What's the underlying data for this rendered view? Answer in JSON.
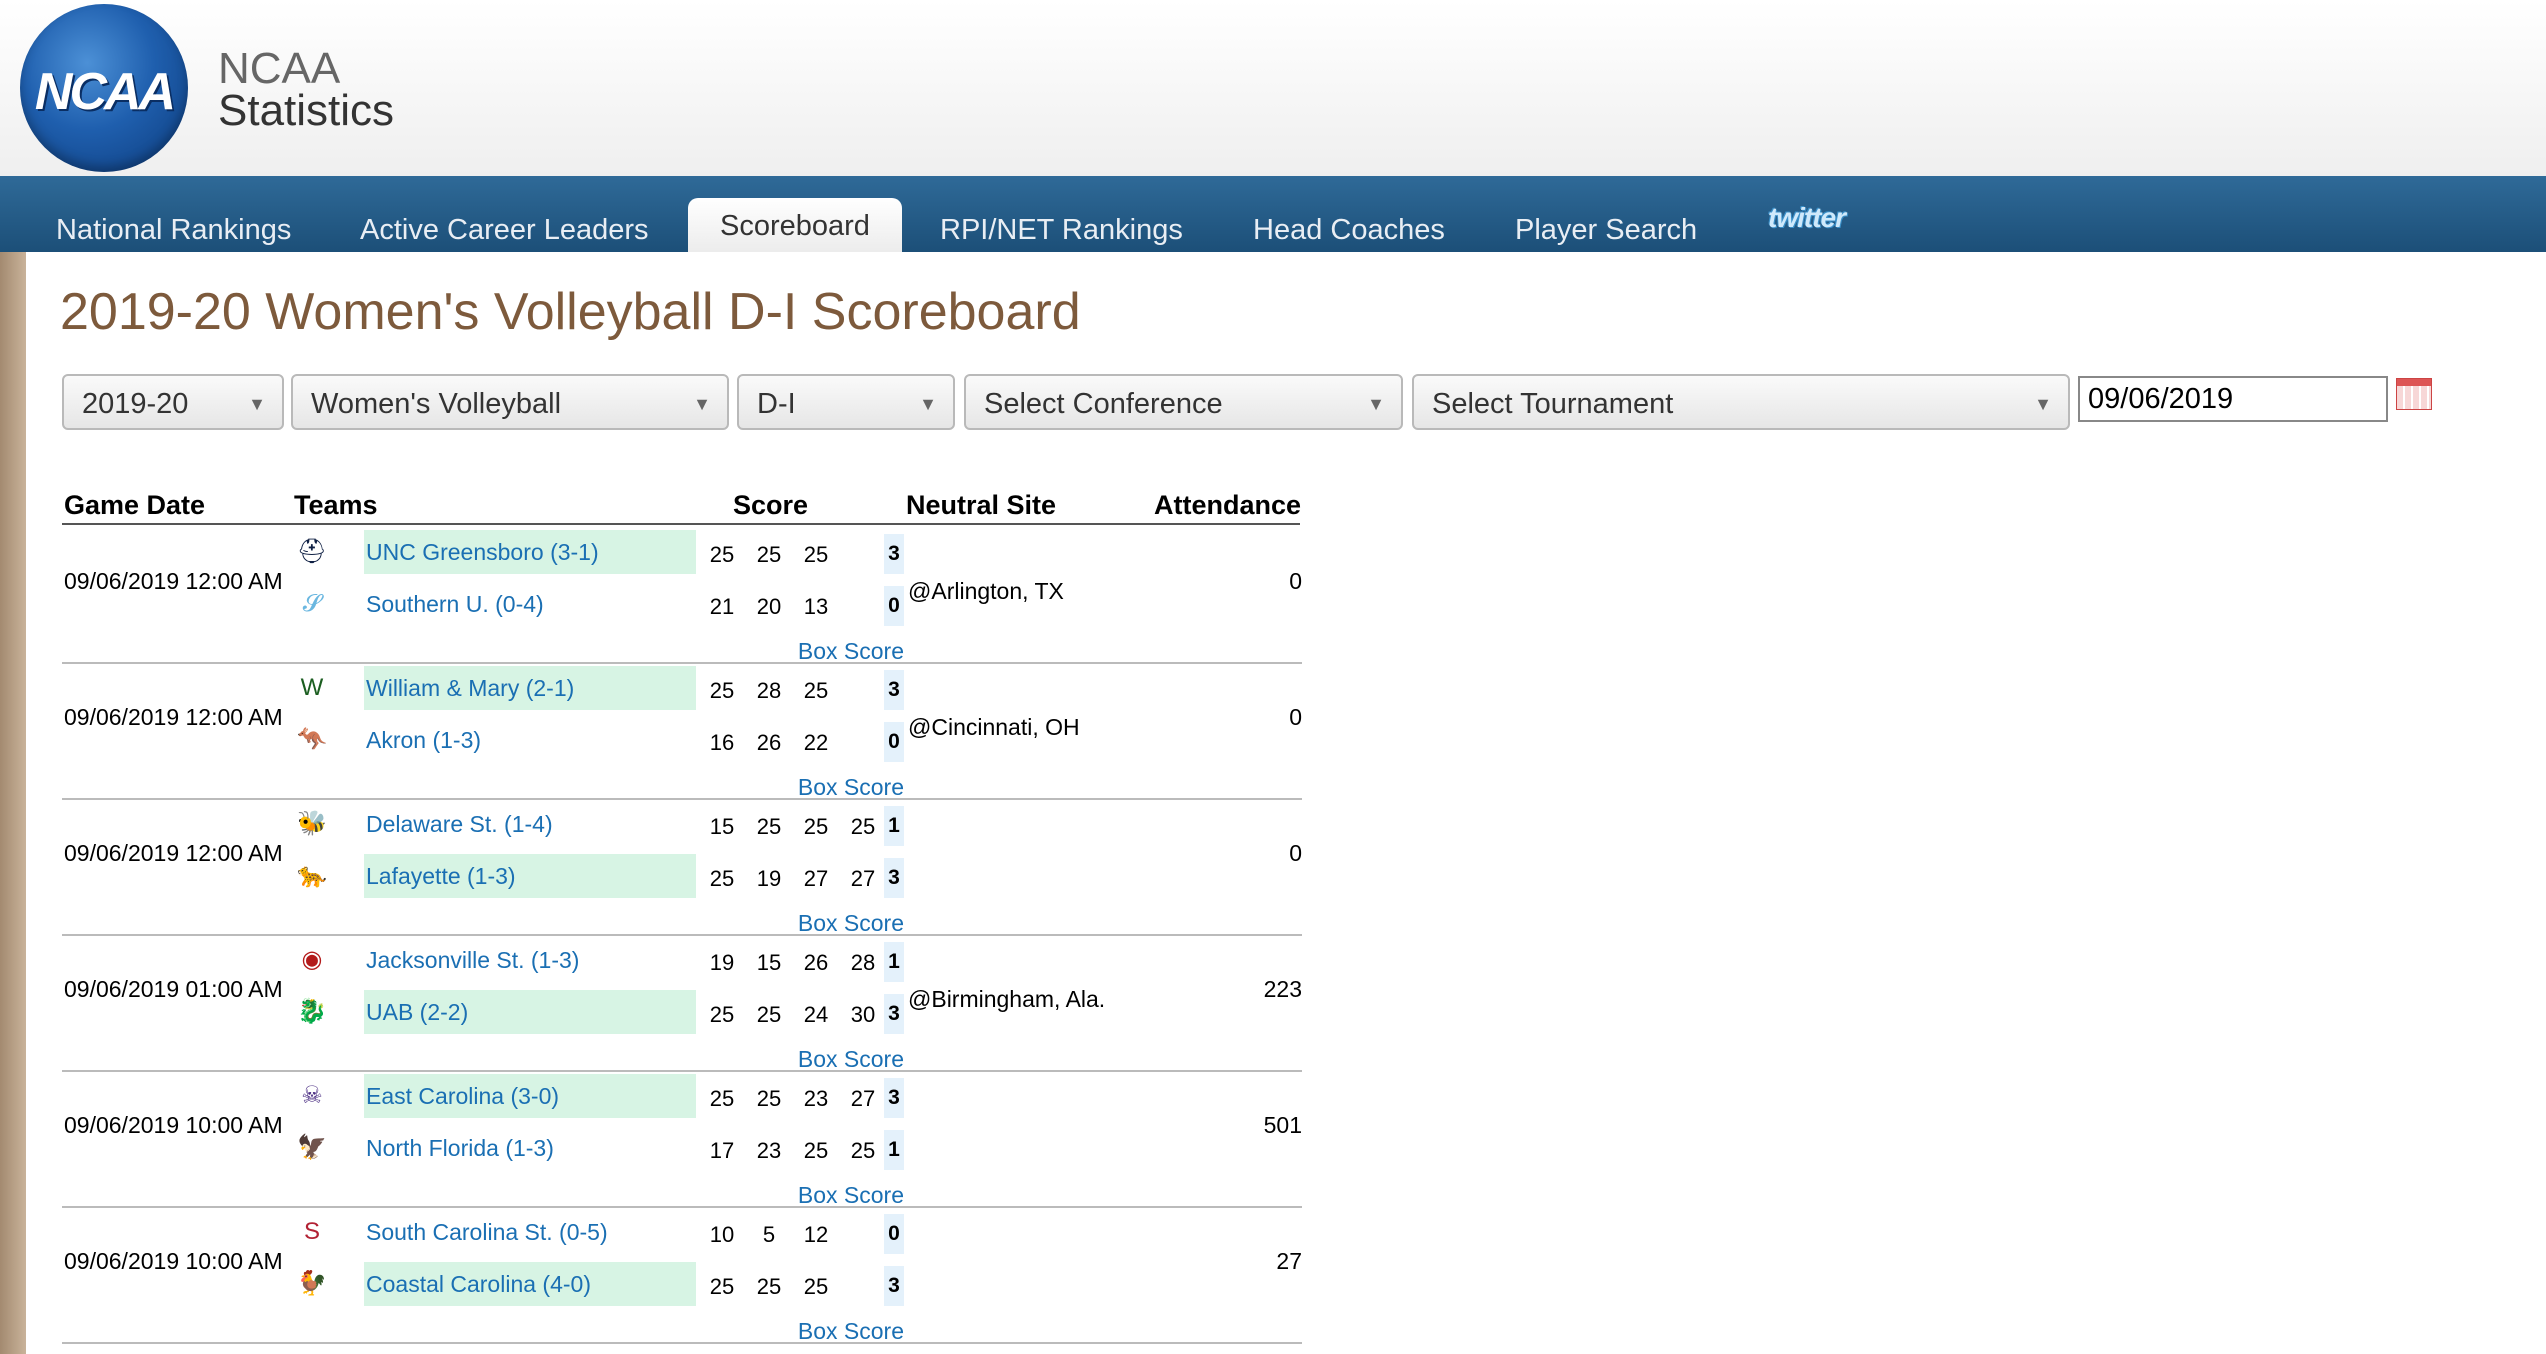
{
  "header": {
    "logo_text": "NCAA",
    "title_line1": "NCAA",
    "title_line2": "Statistics"
  },
  "nav": {
    "items": [
      "National Rankings",
      "Active Career Leaders",
      "Scoreboard",
      "RPI/NET Rankings",
      "Head Coaches",
      "Player Search"
    ],
    "active": "Scoreboard",
    "twitter": "twitter"
  },
  "page_title": "2019-20 Women's Volleyball D-I Scoreboard",
  "filters": {
    "season": "2019-20",
    "sport": "Women's Volleyball",
    "division": "D-I",
    "conference": "Select Conference",
    "tournament": "Select Tournament",
    "date": "09/06/2019"
  },
  "table": {
    "headers": {
      "game_date": "Game Date",
      "teams": "Teams",
      "score": "Score",
      "neutral_site": "Neutral Site",
      "attendance": "Attendance"
    },
    "box_score_label": "Box Score",
    "games": [
      {
        "date": "09/06/2019 12:00 AM",
        "neutral": "@Arlington, TX",
        "attendance": "0",
        "teams": [
          {
            "name": "UNC Greensboro (3-1)",
            "sets": [
              "25",
              "25",
              "25"
            ],
            "final": "3",
            "win": true,
            "logo_icon": "spartan-helmet-icon"
          },
          {
            "name": "Southern U. (0-4)",
            "sets": [
              "21",
              "20",
              "13"
            ],
            "final": "0",
            "win": false,
            "logo_icon": "su-jaguar-icon"
          }
        ]
      },
      {
        "date": "09/06/2019 12:00 AM",
        "neutral": "@Cincinnati, OH",
        "attendance": "0",
        "teams": [
          {
            "name": "William & Mary (2-1)",
            "sets": [
              "25",
              "28",
              "25"
            ],
            "final": "3",
            "win": true,
            "logo_icon": "wm-logo-icon"
          },
          {
            "name": "Akron (1-3)",
            "sets": [
              "16",
              "26",
              "22"
            ],
            "final": "0",
            "win": false,
            "logo_icon": "zip-kangaroo-icon"
          }
        ]
      },
      {
        "date": "09/06/2019 12:00 AM",
        "neutral": "",
        "attendance": "0",
        "teams": [
          {
            "name": "Delaware St. (1-4)",
            "sets": [
              "15",
              "25",
              "25",
              "25"
            ],
            "final": "1",
            "win": false,
            "logo_icon": "hornet-icon"
          },
          {
            "name": "Lafayette (1-3)",
            "sets": [
              "25",
              "19",
              "27",
              "27"
            ],
            "final": "3",
            "win": true,
            "logo_icon": "lafayette-leopard-icon"
          }
        ]
      },
      {
        "date": "09/06/2019 01:00 AM",
        "neutral": "@Birmingham, Ala.",
        "attendance": "223",
        "teams": [
          {
            "name": "Jacksonville St. (1-3)",
            "sets": [
              "19",
              "15",
              "26",
              "28"
            ],
            "final": "1",
            "win": false,
            "logo_icon": "gamecock-badge-icon"
          },
          {
            "name": "UAB (2-2)",
            "sets": [
              "25",
              "25",
              "24",
              "30"
            ],
            "final": "3",
            "win": true,
            "logo_icon": "dragon-icon"
          }
        ]
      },
      {
        "date": "09/06/2019 10:00 AM",
        "neutral": "",
        "attendance": "501",
        "teams": [
          {
            "name": "East Carolina (3-0)",
            "sets": [
              "25",
              "25",
              "23",
              "27"
            ],
            "final": "3",
            "win": true,
            "logo_icon": "pirate-icon"
          },
          {
            "name": "North Florida (1-3)",
            "sets": [
              "17",
              "23",
              "25",
              "25"
            ],
            "final": "1",
            "win": false,
            "logo_icon": "osprey-icon"
          }
        ]
      },
      {
        "date": "09/06/2019 10:00 AM",
        "neutral": "",
        "attendance": "27",
        "teams": [
          {
            "name": "South Carolina St. (0-5)",
            "sets": [
              "10",
              "5",
              "12"
            ],
            "final": "0",
            "win": false,
            "logo_icon": "s-logo-icon"
          },
          {
            "name": "Coastal Carolina (4-0)",
            "sets": [
              "25",
              "25",
              "25"
            ],
            "final": "3",
            "win": true,
            "logo_icon": "chanticleer-icon"
          }
        ]
      }
    ]
  }
}
